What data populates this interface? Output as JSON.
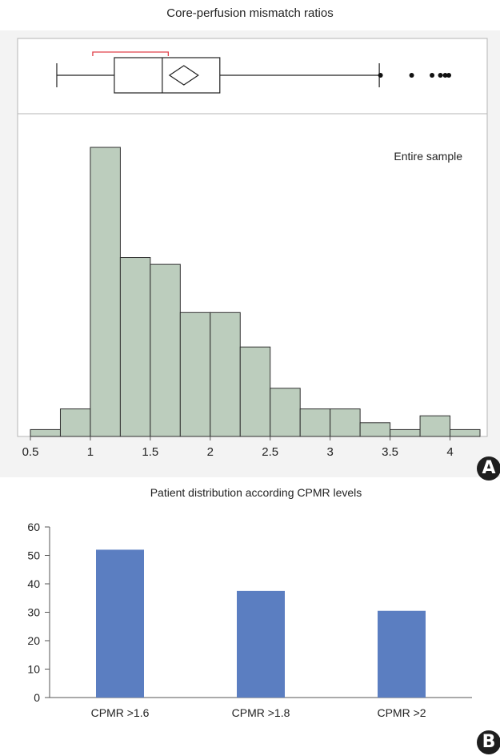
{
  "chart_data": [
    {
      "type": "histogram",
      "panel_label": "A",
      "title": "Core-perfusion mismatch ratios",
      "annotation": "Entire sample",
      "xlim": [
        0.5,
        4.25
      ],
      "x_ticks": [
        0.5,
        1,
        1.5,
        2,
        2.5,
        3,
        3.5,
        4
      ],
      "x_tick_labels": [
        "0.5",
        "1",
        "1.5",
        "2",
        "2.5",
        "3",
        "3.5",
        "4"
      ],
      "bin_width": 0.25,
      "bins": [
        {
          "x0": 0.5,
          "x1": 0.75,
          "count": 1
        },
        {
          "x0": 0.75,
          "x1": 1.0,
          "count": 4
        },
        {
          "x0": 1.0,
          "x1": 1.25,
          "count": 42
        },
        {
          "x0": 1.25,
          "x1": 1.5,
          "count": 26
        },
        {
          "x0": 1.5,
          "x1": 1.75,
          "count": 25
        },
        {
          "x0": 1.75,
          "x1": 2.0,
          "count": 18
        },
        {
          "x0": 2.0,
          "x1": 2.25,
          "count": 18
        },
        {
          "x0": 2.25,
          "x1": 2.5,
          "count": 13
        },
        {
          "x0": 2.5,
          "x1": 2.75,
          "count": 7
        },
        {
          "x0": 2.75,
          "x1": 3.0,
          "count": 4
        },
        {
          "x0": 3.0,
          "x1": 3.25,
          "count": 4
        },
        {
          "x0": 3.25,
          "x1": 3.5,
          "count": 2
        },
        {
          "x0": 3.5,
          "x1": 3.75,
          "count": 1
        },
        {
          "x0": 3.75,
          "x1": 4.0,
          "count": 3
        },
        {
          "x0": 4.0,
          "x1": 4.25,
          "count": 1
        }
      ],
      "bar_color": "#bccdbd",
      "boxplot": {
        "whisker_low": 0.72,
        "q1": 1.2,
        "median": 1.6,
        "q3": 2.08,
        "whisker_high": 3.41,
        "mean": 1.78,
        "mean_diamond_halfwidth": 0.12,
        "shortest_half": [
          1.02,
          1.65
        ],
        "outliers": [
          3.42,
          3.68,
          3.85,
          3.92,
          3.96,
          3.99
        ]
      }
    },
    {
      "type": "bar",
      "panel_label": "B",
      "title": "Patient distribution according CPMR levels",
      "categories": [
        "CPMR >1.6",
        "CPMR >1.8",
        "CPMR >2"
      ],
      "values": [
        52,
        37.5,
        30.5
      ],
      "ylim": [
        0,
        60
      ],
      "y_ticks": [
        0,
        10,
        20,
        30,
        40,
        50,
        60
      ],
      "y_tick_labels": [
        "0",
        "10",
        "20",
        "30",
        "40",
        "50",
        "60"
      ],
      "bar_color": "#5b7ec1"
    }
  ]
}
